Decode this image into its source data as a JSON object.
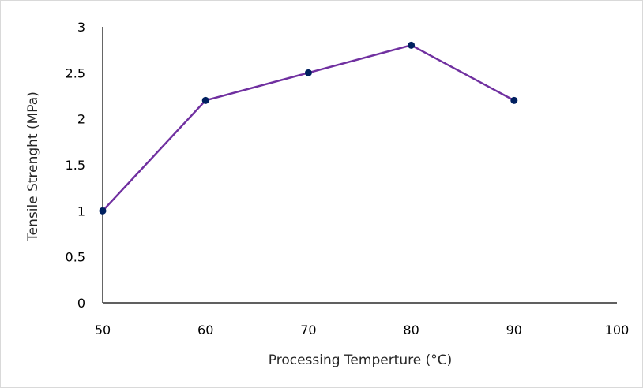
{
  "chart_data": {
    "type": "line",
    "title": "",
    "xlabel": "Processing Temperture (°C)",
    "ylabel": "Tensile Strenght (MPa)",
    "xlim": [
      50,
      100
    ],
    "ylim": [
      0,
      3
    ],
    "xticks": [
      50,
      60,
      70,
      80,
      90,
      100
    ],
    "yticks": [
      0,
      0.5,
      1,
      1.5,
      2,
      2.5,
      3
    ],
    "grid": false,
    "legend": "none",
    "series": [
      {
        "x": [
          50,
          60,
          70,
          80,
          90
        ],
        "y": [
          1.0,
          2.2,
          2.5,
          2.8,
          2.2
        ],
        "line_color": "#7030a0",
        "marker_color": "#002060"
      }
    ],
    "axis_color": "#000000"
  }
}
